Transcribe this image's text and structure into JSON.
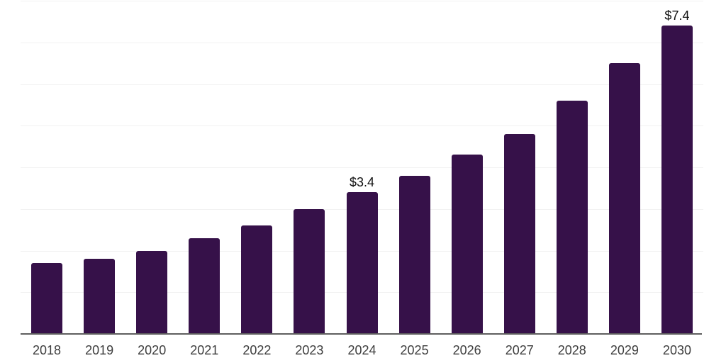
{
  "chart_data": {
    "type": "bar",
    "categories": [
      "2018",
      "2019",
      "2020",
      "2021",
      "2022",
      "2023",
      "2024",
      "2025",
      "2026",
      "2027",
      "2028",
      "2029",
      "2030"
    ],
    "values": [
      1.7,
      1.8,
      2.0,
      2.3,
      2.6,
      3.0,
      3.4,
      3.8,
      4.3,
      4.8,
      5.6,
      6.5,
      7.4
    ],
    "annotations": [
      {
        "category": "2024",
        "text": "$3.4"
      },
      {
        "category": "2030",
        "text": "$7.4"
      }
    ],
    "title": "",
    "xlabel": "",
    "ylabel": "",
    "ylim": [
      0,
      8
    ],
    "grid": "horizontal",
    "gridline_step": 1,
    "legend": "none",
    "bar_color": "#361149",
    "gridline_color": "#f2f2f2",
    "axis_line_color": "#5f5f5f",
    "tick_label_color": "#3d3d3d",
    "annotation_color": "#111111",
    "background_color": "#ffffff"
  }
}
